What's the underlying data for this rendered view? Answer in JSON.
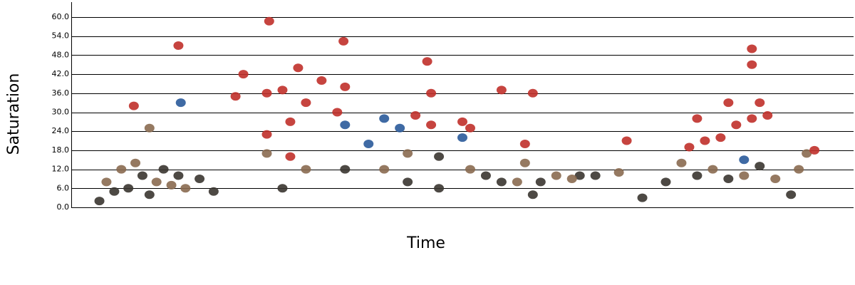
{
  "chart_data": {
    "type": "scatter",
    "x_label": "Time",
    "y_label": "Saturation",
    "xlim": [
      0,
      100
    ],
    "ylim": [
      0,
      60
    ],
    "yticks": [
      {
        "value": 0,
        "label": "0.0"
      },
      {
        "value": 6,
        "label": "6.0"
      },
      {
        "value": 12,
        "label": "12.0"
      },
      {
        "value": 18,
        "label": "18.0"
      },
      {
        "value": 24,
        "label": "24.0"
      },
      {
        "value": 30,
        "label": "30.0"
      },
      {
        "value": 36,
        "label": "36.0"
      },
      {
        "value": 42,
        "label": "42.0"
      },
      {
        "value": 48,
        "label": "48.0"
      },
      {
        "value": 54,
        "label": "54.0"
      },
      {
        "value": 60,
        "label": "60.0"
      }
    ],
    "grid": true,
    "x": [
      3.6,
      4.5,
      5.5,
      6.4,
      7.3,
      8.2,
      9.1,
      10,
      10.9,
      11.8,
      12.8,
      13.7,
      14.6,
      16.4,
      18.2,
      8,
      10,
      13.7,
      14,
      21,
      22,
      25,
      27,
      25,
      25,
      29,
      30,
      25.3,
      32,
      28,
      34,
      35,
      35,
      34.8,
      40,
      38,
      42,
      43,
      44,
      46,
      47,
      50,
      45.5,
      46,
      50,
      51,
      55,
      53,
      57,
      60,
      62,
      65,
      58,
      40,
      35,
      27,
      30,
      28,
      43,
      47,
      51,
      55,
      58,
      59,
      64,
      67,
      70,
      71,
      59,
      73,
      76,
      78,
      80,
      82,
      84,
      86,
      88,
      90,
      92,
      94,
      93,
      79,
      80,
      81,
      83,
      84,
      85,
      87,
      88,
      89,
      87,
      87,
      95,
      86
    ],
    "values": [
      2,
      8,
      5,
      12,
      6,
      14,
      10,
      4,
      8,
      12,
      7,
      10,
      6,
      9,
      5,
      32,
      25,
      51,
      33,
      35,
      42,
      36,
      37,
      23,
      17,
      44,
      33,
      58.7,
      40,
      27,
      30,
      38,
      26,
      52.4,
      28,
      20,
      25,
      17,
      29,
      26,
      16,
      22,
      46,
      36,
      27,
      25,
      37,
      10,
      8,
      8,
      10,
      10,
      14,
      12,
      12,
      6,
      12,
      16,
      8,
      6,
      12,
      8,
      20,
      4,
      9,
      10,
      11,
      21,
      36,
      3,
      8,
      14,
      10,
      12,
      9,
      10,
      13,
      9,
      4,
      17,
      12,
      19,
      28,
      21,
      22,
      33,
      26,
      28,
      33,
      29,
      45,
      50,
      18,
      15
    ],
    "colors": [
      "#3a3530",
      "#8a6a50",
      "#3a3530",
      "#8a6a50",
      "#3a3530",
      "#8a6a50",
      "#3a3530",
      "#3a3530",
      "#8a6a50",
      "#3a3530",
      "#8a6a50",
      "#3a3530",
      "#8a6a50",
      "#3a3530",
      "#3a3530",
      "#c0302a",
      "#8a6a50",
      "#c0302a",
      "#2a5a9a",
      "#c0302a",
      "#c0302a",
      "#c0302a",
      "#c0302a",
      "#c0302a",
      "#8a6a50",
      "#c0302a",
      "#c0302a",
      "#c0302a",
      "#c0302a",
      "#c0302a",
      "#c0302a",
      "#c0302a",
      "#2a5a9a",
      "#c0302a",
      "#2a5a9a",
      "#2a5a9a",
      "#2a5a9a",
      "#8a6a50",
      "#c0302a",
      "#c0302a",
      "#3a3530",
      "#2a5a9a",
      "#c0302a",
      "#c0302a",
      "#c0302a",
      "#c0302a",
      "#c0302a",
      "#3a3530",
      "#8a6a50",
      "#3a3530",
      "#8a6a50",
      "#3a3530",
      "#8a6a50",
      "#8a6a50",
      "#3a3530",
      "#3a3530",
      "#8a6a50",
      "#c0302a",
      "#3a3530",
      "#3a3530",
      "#8a6a50",
      "#3a3530",
      "#c0302a",
      "#3a3530",
      "#8a6a50",
      "#3a3530",
      "#8a6a50",
      "#c0302a",
      "#c0302a",
      "#3a3530",
      "#3a3530",
      "#8a6a50",
      "#3a3530",
      "#8a6a50",
      "#3a3530",
      "#8a6a50",
      "#3a3530",
      "#8a6a50",
      "#3a3530",
      "#8a6a50",
      "#8a6a50",
      "#c0302a",
      "#c0302a",
      "#c0302a",
      "#c0302a",
      "#c0302a",
      "#c0302a",
      "#c0302a",
      "#c0302a",
      "#c0302a",
      "#c0302a",
      "#c0302a",
      "#c0302a",
      "#2a5a9a"
    ]
  }
}
